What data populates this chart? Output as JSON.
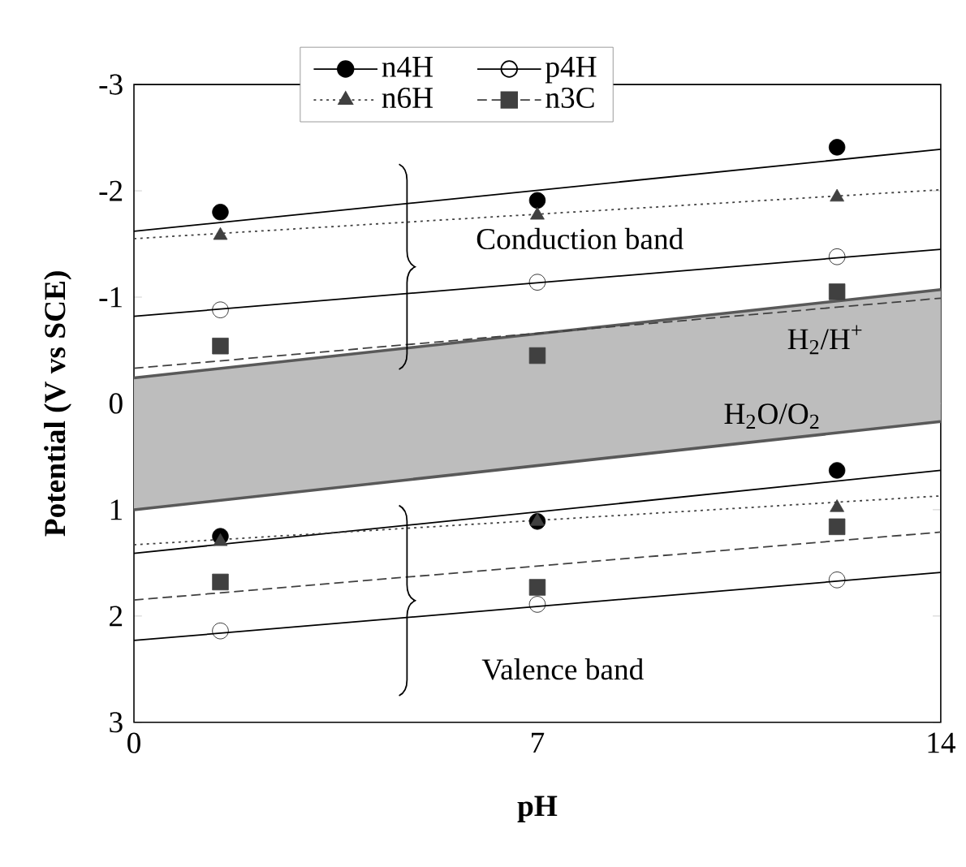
{
  "chart_data": {
    "type": "scatter",
    "xlabel": "pH",
    "ylabel": "Potential (V vs SCE)",
    "xlim": [
      0,
      14
    ],
    "xticks": [
      0,
      7,
      14
    ],
    "ylim": [
      3,
      -3
    ],
    "yticks": [
      -3,
      -2,
      -1,
      0,
      1,
      2,
      3
    ],
    "legend": "top",
    "ref_lines": [
      {
        "axis": "y",
        "value": 0,
        "color": "#a6a6a6"
      }
    ],
    "annotations": [
      "Conduction band",
      "Valence band",
      "H$_{2}$/H$^{+}$",
      "H$_{2}$O/O$_{2}$"
    ],
    "series": [
      {
        "type": "line",
        "color": "#595959",
        "x": [
          0,
          14
        ],
        "values": [
          -0.24,
          -1.07
        ],
        "line_style": "solid",
        "lower": [
          -0.24,
          -1.07
        ],
        "upper": [
          1.0,
          0.17
        ]
      },
      {
        "type": "line",
        "color": "#595959",
        "x": [
          0,
          14
        ],
        "values": [
          1.0,
          0.17
        ],
        "line_style": "solid"
      },
      {
        "type": "line",
        "color": "#000000",
        "x": [
          0,
          14
        ],
        "values": [
          -1.62,
          -2.39
        ],
        "line_style": "solid"
      },
      {
        "type": "line",
        "color": "#000000",
        "x": [
          0,
          14
        ],
        "values": [
          1.41,
          0.63
        ],
        "line_style": "solid"
      },
      {
        "type": "line",
        "color": "#000000",
        "x": [
          0,
          14
        ],
        "values": [
          -0.82,
          -1.45
        ],
        "line_style": "solid"
      },
      {
        "type": "line",
        "color": "#000000",
        "x": [
          0,
          14
        ],
        "values": [
          2.23,
          1.59
        ],
        "line_style": "solid"
      },
      {
        "type": "line",
        "color": "#404040",
        "x": [
          0,
          14
        ],
        "values": [
          -1.55,
          -2.01
        ],
        "line_style": "dotted"
      },
      {
        "type": "line",
        "color": "#404040",
        "x": [
          0,
          14
        ],
        "values": [
          1.33,
          0.87
        ],
        "line_style": "dotted"
      },
      {
        "type": "line",
        "color": "#404040",
        "x": [
          0,
          14
        ],
        "values": [
          -0.33,
          -0.99
        ],
        "line_style": "dashed"
      },
      {
        "type": "line",
        "color": "#404040",
        "x": [
          0,
          14
        ],
        "values": [
          1.85,
          1.21
        ],
        "line_style": "dashed"
      },
      {
        "name": "n4H",
        "color": "#000000",
        "marker": "circle",
        "line_style": "solid",
        "x": [
          1.5,
          7,
          12.2,
          1.5,
          7,
          12.2
        ],
        "values": [
          -1.8,
          -1.91,
          -2.41,
          1.25,
          1.11,
          0.63
        ]
      },
      {
        "name": "p4H",
        "color": "#000000",
        "marker": "circle-open",
        "line_style": "solid",
        "x": [
          1.5,
          7,
          12.2,
          1.5,
          7,
          12.2
        ],
        "values": [
          -0.88,
          -1.14,
          -1.38,
          2.14,
          1.89,
          1.66
        ]
      },
      {
        "name": "n6H",
        "color": "#404040",
        "marker": "triangle",
        "line_style": "dotted",
        "x": [
          1.5,
          7,
          12.2,
          1.5,
          7,
          12.2
        ],
        "values": [
          -1.58,
          -1.77,
          -1.94,
          1.3,
          1.11,
          0.98
        ]
      },
      {
        "name": "n3C",
        "color": "#404040",
        "marker": "square",
        "line_style": "dashed",
        "x": [
          1.5,
          7,
          12.2,
          1.5,
          7,
          12.2
        ],
        "values": [
          -0.54,
          -0.45,
          -1.05,
          1.68,
          1.73,
          1.16
        ]
      }
    ]
  }
}
